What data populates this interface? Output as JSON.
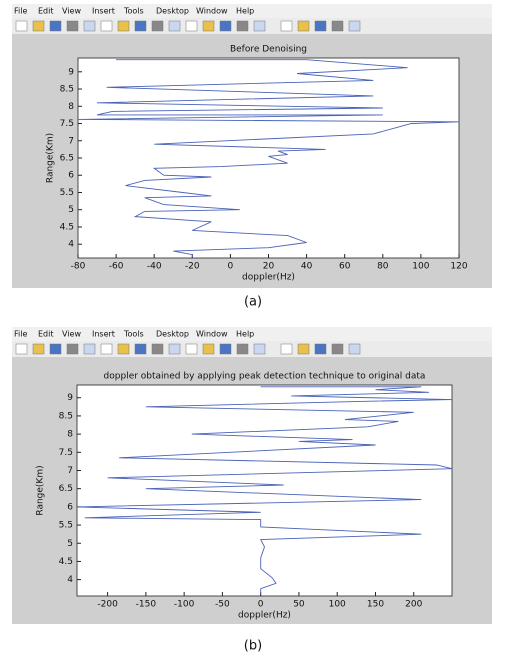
{
  "windows": [
    {
      "menu": [
        "File",
        "Edit",
        "View",
        "Insert",
        "Tools",
        "Desktop",
        "Window",
        "Help"
      ]
    },
    {
      "menu": [
        "File",
        "Edit",
        "View",
        "Insert",
        "Tools",
        "Desktop",
        "Window",
        "Help"
      ]
    }
  ],
  "captions": [
    "(a)",
    "(b)"
  ],
  "chart_data": [
    {
      "type": "line",
      "title": "Before Denoising",
      "x_label": "doppler(Hz)",
      "y_label": "Range(Km)",
      "xlim": [
        -80,
        120
      ],
      "xticks": [
        -80,
        -60,
        -40,
        -20,
        0,
        20,
        40,
        60,
        80,
        100,
        120
      ],
      "ylim": [
        3.6,
        9.4
      ],
      "yticks": [
        4,
        4.5,
        5,
        5.5,
        6,
        6.5,
        7,
        7.5,
        8,
        8.5,
        9
      ],
      "series": [
        {
          "color": "#4a62b8",
          "x": [
            -60,
            40,
            93,
            35,
            75,
            -65,
            75,
            -70,
            80,
            -62,
            -70,
            80,
            -80,
            120,
            95,
            75,
            -40,
            50,
            25,
            30,
            20,
            30,
            -5,
            -40,
            -35,
            -10,
            -45,
            -55,
            -25,
            -10,
            -45,
            -35,
            5,
            -45,
            -50,
            -10,
            -20,
            30,
            40,
            20,
            -30,
            -20,
            -20
          ],
          "values": [
            9.35,
            9.35,
            9.12,
            8.95,
            8.75,
            8.55,
            8.3,
            8.1,
            7.95,
            7.85,
            7.75,
            7.75,
            7.62,
            7.55,
            7.5,
            7.2,
            6.9,
            6.75,
            6.7,
            6.6,
            6.55,
            6.35,
            6.25,
            6.2,
            6.0,
            5.95,
            5.85,
            5.7,
            5.5,
            5.4,
            5.35,
            5.15,
            5.0,
            4.95,
            4.8,
            4.65,
            4.4,
            4.25,
            4.05,
            3.9,
            3.8,
            3.7,
            3.62
          ]
        }
      ]
    },
    {
      "type": "line",
      "title": "doppler obtained by applying peak detection technique to original data",
      "x_label": "doppler(Hz)",
      "y_label": "Range(Km)",
      "xlim": [
        -240,
        250
      ],
      "xticks": [
        -200,
        -150,
        -100,
        -50,
        0,
        50,
        100,
        150,
        200
      ],
      "ylim": [
        3.55,
        9.35
      ],
      "yticks": [
        4,
        4.5,
        5,
        5.5,
        6,
        6.5,
        7,
        7.5,
        8,
        8.5,
        9
      ],
      "series": [
        {
          "color": "#4a62b8",
          "x": [
            0,
            210,
            150,
            220,
            40,
            250,
            130,
            -150,
            200,
            110,
            180,
            140,
            -90,
            120,
            50,
            150,
            -185,
            230,
            250,
            -200,
            30,
            -150,
            210,
            -240,
            0,
            -230,
            0,
            0,
            210,
            0,
            5,
            0,
            0,
            15,
            20,
            0,
            0
          ],
          "values": [
            9.3,
            9.3,
            9.22,
            9.15,
            9.05,
            8.95,
            8.9,
            8.75,
            8.6,
            8.4,
            8.35,
            8.2,
            8.0,
            7.85,
            7.8,
            7.7,
            7.35,
            7.15,
            7.05,
            6.8,
            6.6,
            6.5,
            6.2,
            6.0,
            5.85,
            5.7,
            5.65,
            5.45,
            5.25,
            5.1,
            4.9,
            4.6,
            4.3,
            4.05,
            3.9,
            3.75,
            3.6
          ]
        }
      ]
    }
  ]
}
